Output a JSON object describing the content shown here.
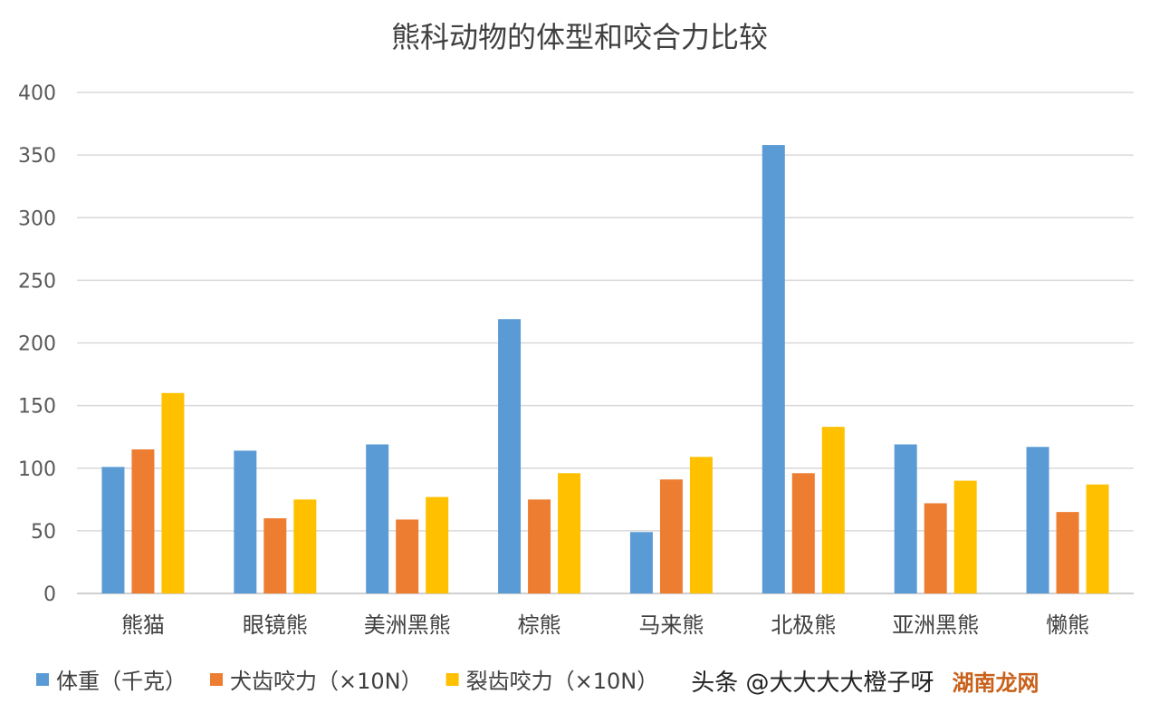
{
  "chart_data": {
    "type": "bar",
    "title": "熊科动物的体型和咬合力比较",
    "xlabel": "",
    "ylabel": "",
    "ylim": [
      0,
      400
    ],
    "yticks": [
      0,
      50,
      100,
      150,
      200,
      250,
      300,
      350,
      400
    ],
    "grid": true,
    "legend_position": "bottom",
    "categories": [
      "熊猫",
      "眼镜熊",
      "美洲黑熊",
      "棕熊",
      "马来熊",
      "北极熊",
      "亚洲黑熊",
      "懒熊"
    ],
    "series": [
      {
        "name": "体重（千克）",
        "color": "#5b9bd5",
        "values": [
          101,
          114,
          119,
          219,
          49,
          358,
          119,
          117
        ]
      },
      {
        "name": "犬齿咬力（×10N）",
        "color": "#ed7d31",
        "values": [
          115,
          60,
          59,
          75,
          91,
          96,
          72,
          65
        ]
      },
      {
        "name": "裂齿咬力（×10N）",
        "color": "#ffc000",
        "values": [
          160,
          75,
          77,
          96,
          109,
          133,
          90,
          87
        ]
      }
    ]
  },
  "watermark": {
    "text": "头条 @大大大大橙子呀",
    "site": "湖南龙网"
  }
}
